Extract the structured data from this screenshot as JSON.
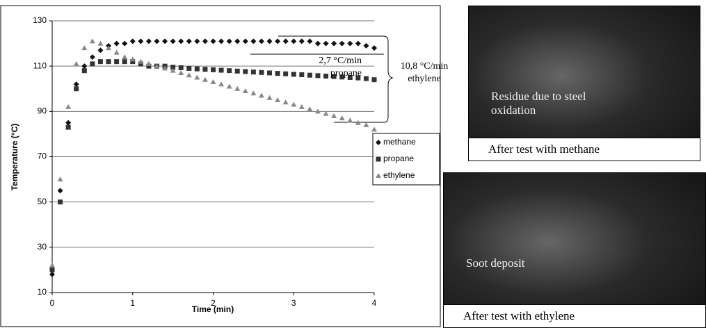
{
  "chart_data": {
    "type": "scatter",
    "x_label": "Time (min)",
    "y_label": "Temperature (°C)",
    "xlim": [
      0,
      4
    ],
    "xticks": [
      0,
      1,
      2,
      3,
      4
    ],
    "ylim": [
      10,
      130
    ],
    "yticks": [
      10,
      30,
      50,
      70,
      90,
      110,
      130
    ],
    "grid": true,
    "legend": "right",
    "x": [
      0,
      0.1,
      0.2,
      0.3,
      0.4,
      0.5,
      0.6,
      0.7,
      0.8,
      0.9,
      1,
      1.1,
      1.2,
      1.3,
      1.4,
      1.5,
      1.6,
      1.7,
      1.8,
      1.9,
      2,
      2.1,
      2.2,
      2.3,
      2.4,
      2.5,
      2.6,
      2.7,
      2.8,
      2.9,
      3,
      3.1,
      3.2,
      3.3,
      3.4,
      3.5,
      3.6,
      3.7,
      3.8,
      3.9,
      4
    ],
    "series": [
      {
        "name": "methane",
        "color": "#111111",
        "marker": "diamond",
        "values": [
          18,
          55,
          85,
          102,
          110,
          114,
          117,
          119,
          120,
          120,
          121,
          121,
          121,
          121,
          121,
          121,
          121,
          121,
          121,
          121,
          121,
          121,
          121,
          121,
          121,
          121,
          121,
          121,
          121,
          121,
          121,
          121,
          121,
          120,
          120,
          120,
          120,
          120,
          120,
          119,
          118
        ]
      },
      {
        "name": "propane",
        "color": "#333333",
        "marker": "square",
        "values": [
          20,
          50,
          83,
          100,
          108,
          111,
          112,
          112,
          112,
          112,
          112,
          111,
          110,
          110,
          110,
          109.5,
          109.3,
          109,
          108.8,
          108.6,
          108.4,
          108.2,
          108,
          107.8,
          107.6,
          107.4,
          107.2,
          107,
          106.8,
          106.6,
          106.4,
          106.2,
          106,
          105.8,
          105.6,
          105.4,
          105.2,
          105,
          104.8,
          104.5,
          104
        ]
      },
      {
        "name": "ethylene",
        "color": "#888888",
        "marker": "triangle",
        "values": [
          22,
          60,
          92,
          111,
          118,
          121,
          120,
          118,
          116,
          114,
          113,
          112,
          111,
          110,
          109,
          108,
          107,
          106,
          105,
          104,
          103,
          102,
          101,
          100,
          99,
          98,
          97,
          96,
          95,
          94,
          93,
          92,
          91,
          90,
          89,
          88,
          87,
          86,
          85,
          84,
          82
        ]
      }
    ],
    "annotations": [
      {
        "lines": [
          "2,7 °C/min",
          "propane"
        ]
      },
      {
        "lines": [
          "10,8 °C/min",
          "ethylene"
        ]
      }
    ]
  },
  "photos": [
    {
      "label": "Residue due to steel oxidation",
      "caption": "After test with methane"
    },
    {
      "label": "Soot deposit",
      "caption": "After test with ethylene"
    }
  ]
}
